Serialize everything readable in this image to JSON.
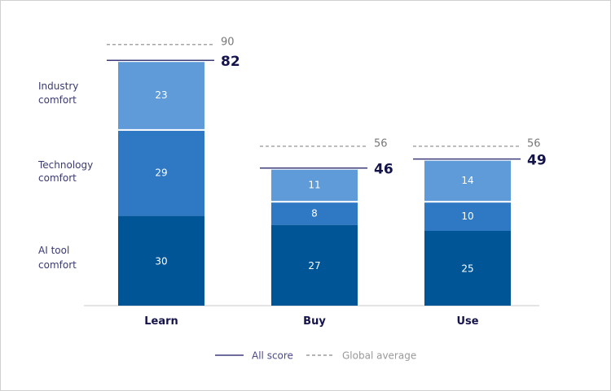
{
  "chart_data": {
    "type": "bar",
    "stacked": true,
    "categories": [
      "Learn",
      "Buy",
      "Use"
    ],
    "series": [
      {
        "name": "AI tool comfort",
        "values": [
          30,
          27,
          25
        ],
        "color": "#005596"
      },
      {
        "name": "Technology comfort",
        "values": [
          29,
          8,
          10
        ],
        "color": "#2f78c4"
      },
      {
        "name": "Industry comfort",
        "values": [
          23,
          11,
          14
        ],
        "color": "#5f9bd9"
      }
    ],
    "side_labels": [
      [
        "AI tool",
        "comfort"
      ],
      [
        "Technology",
        "comfort"
      ],
      [
        "Industry",
        "comfort"
      ]
    ],
    "all_score": [
      82,
      46,
      49
    ],
    "global_average": [
      90,
      56,
      56
    ],
    "legend": {
      "all_score": "All score",
      "global_average": "Global average",
      "placement": "bottom-center"
    },
    "colors": {
      "all_score_line": "#3d3b7a",
      "average_line": "#888888",
      "total_text": "#14134a"
    },
    "grid": false
  }
}
